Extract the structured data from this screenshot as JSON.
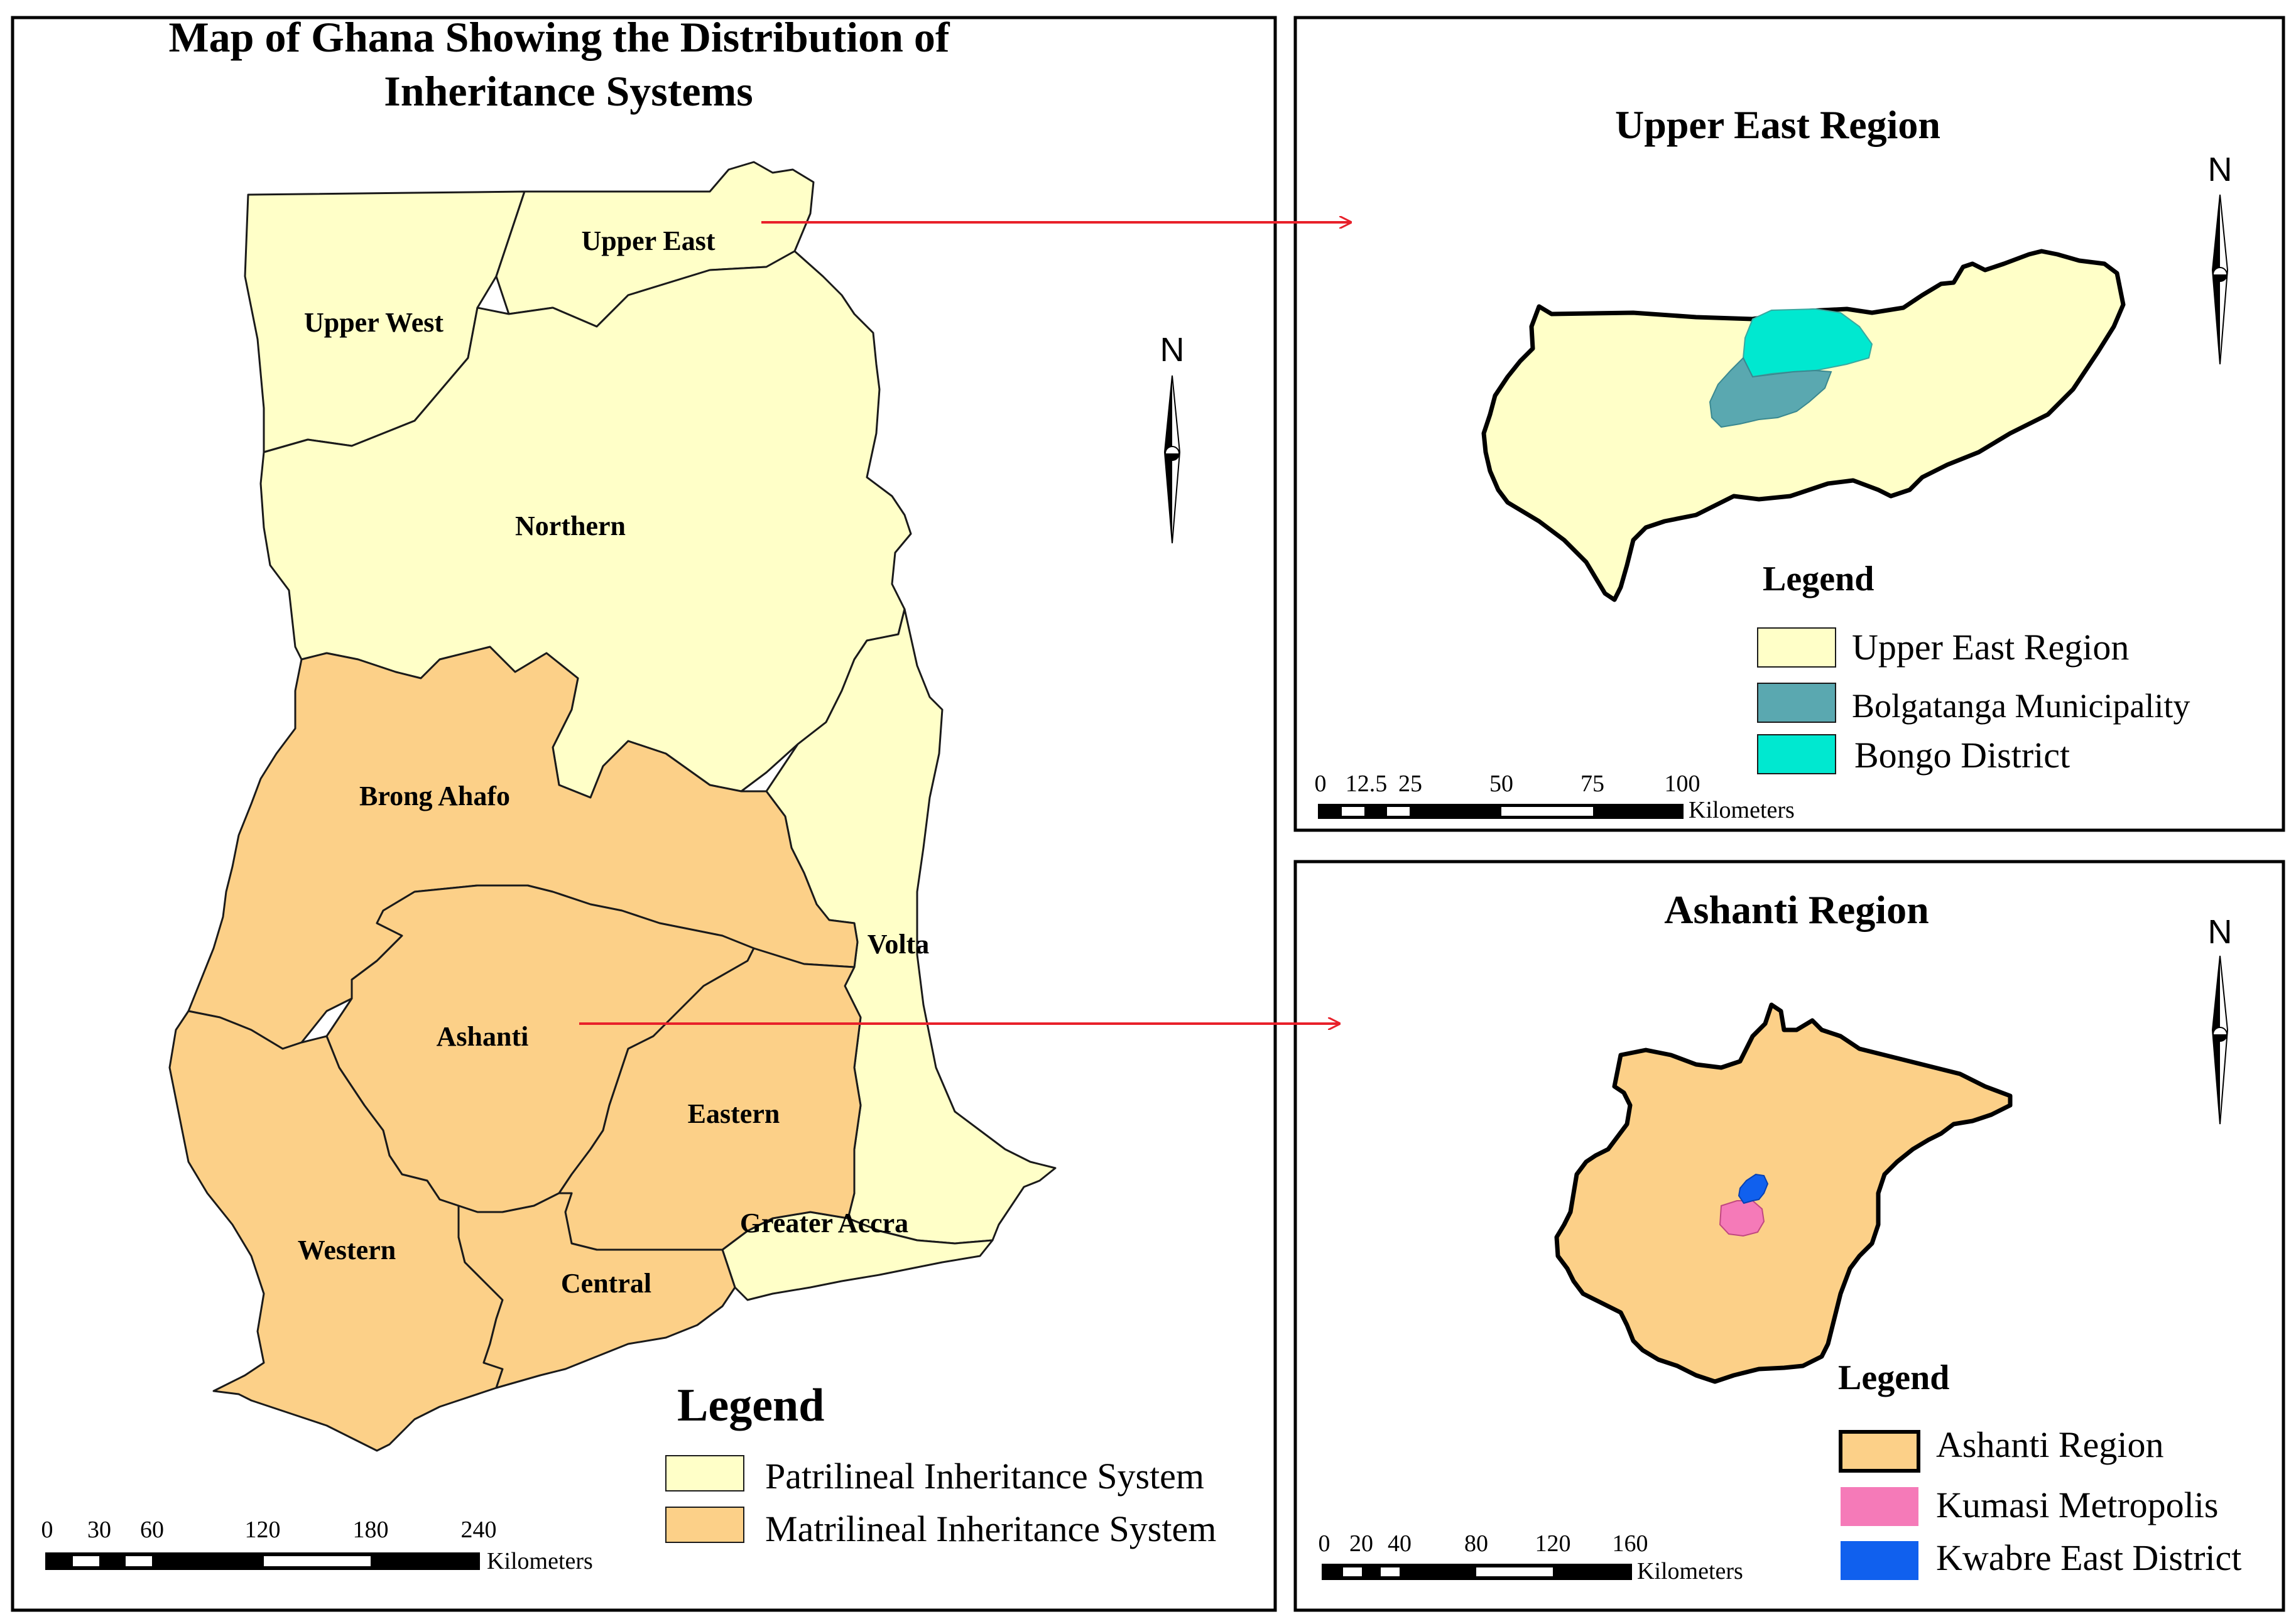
{
  "main_map": {
    "title_line1": "Map of Ghana Showing the Distribution of",
    "title_line2": "Inheritance Systems",
    "regions": {
      "upper_east": "Upper East",
      "upper_west": "Upper West",
      "northern": "Northern",
      "brong_ahafo": "Brong Ahafo",
      "volta": "Volta",
      "ashanti": "Ashanti",
      "eastern": "Eastern",
      "greater_accra": "Greater Accra",
      "western": "Western",
      "central": "Central"
    },
    "north_label": "N",
    "legend": {
      "title": "Legend",
      "items": [
        {
          "label": "Patrilineal Inheritance System",
          "color": "#ffffc8"
        },
        {
          "label": "Matrilineal Inheritance System",
          "color": "#fcd088"
        }
      ]
    },
    "scale": {
      "ticks": [
        "0",
        "30",
        "60",
        "120",
        "180",
        "240"
      ],
      "unit": "Kilometers"
    }
  },
  "upper_east_inset": {
    "title": "Upper East Region",
    "north_label": "N",
    "legend": {
      "title": "Legend",
      "items": [
        {
          "label": "Upper East Region",
          "color": "#ffffc8"
        },
        {
          "label": "Bolgatanga Municipality",
          "color": "#5aa8b0"
        },
        {
          "label": "Bongo District",
          "color": "#00e8d0"
        }
      ]
    },
    "scale": {
      "ticks": [
        "0",
        "12.5",
        "25",
        "50",
        "75",
        "100"
      ],
      "unit": "Kilometers"
    }
  },
  "ashanti_inset": {
    "title": "Ashanti Region",
    "north_label": "N",
    "legend": {
      "title": "Legend",
      "items": [
        {
          "label": "Ashanti Region",
          "color": "#fcd088"
        },
        {
          "label": "Kumasi Metropolis",
          "color": "#f57ab8"
        },
        {
          "label": "Kwabre East District",
          "color": "#1060ee"
        }
      ]
    },
    "scale": {
      "ticks": [
        "0",
        "20",
        "40",
        "80",
        "120",
        "160"
      ],
      "unit": "Kilometers"
    }
  },
  "colors": {
    "patrilineal": "#ffffc8",
    "matrilineal": "#fcd088",
    "arrow": "#e8202a",
    "frame": "#000000"
  }
}
